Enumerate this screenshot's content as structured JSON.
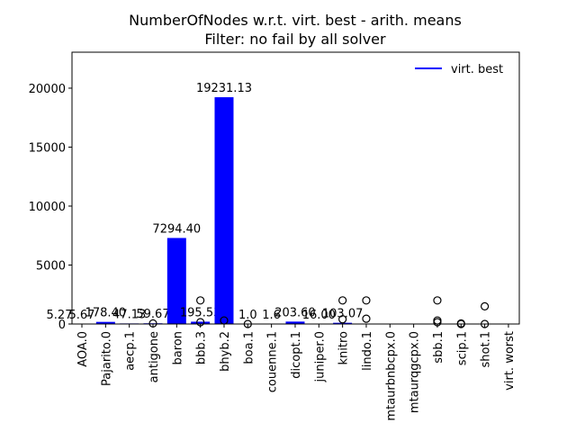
{
  "chart_data": {
    "type": "bar",
    "title": "NumberOfNodes w.r.t. virt. best - arith. means",
    "subtitle": "Filter: no fail by all solver",
    "categories": [
      "AOA.0",
      "Pajarito.0",
      "aecp.1",
      "antigone",
      "baron",
      "bbb.3",
      "bhyb.2",
      "boa.1",
      "couenne.1",
      "dicopt.1",
      "juniper.0",
      "knitro",
      "lindo.1",
      "mtaurbnbcpx.0",
      "mtaurqgcpx.0",
      "sbb.1",
      "scip.1",
      "shot.1",
      "virt. worst"
    ],
    "series": [
      {
        "name": "virt. best",
        "color": "#0000ff",
        "values": [
          5.67,
          178.4,
          47.13,
          59.67,
          7294.4,
          195.53,
          19231.13,
          1.0,
          1.6,
          203.6,
          16.0,
          103.07,
          20,
          5,
          5,
          30,
          10,
          10,
          5
        ],
        "value_labels": [
          "5.67",
          "178.40",
          "47.13",
          "59.67",
          "7294.40",
          "195.53",
          "19231.13",
          "1.0",
          "1.6",
          "203.60",
          "16.00",
          "103.07",
          null,
          null,
          null,
          null,
          null,
          null,
          null
        ]
      }
    ],
    "extra_labels": [
      "5.27"
    ],
    "outliers": [
      {
        "category": 3,
        "value": 50
      },
      {
        "category": 5,
        "value": 2000
      },
      {
        "category": 5,
        "value": 150
      },
      {
        "category": 6,
        "value": 300
      },
      {
        "category": 7,
        "value": 0
      },
      {
        "category": 11,
        "value": 2000
      },
      {
        "category": 11,
        "value": 400
      },
      {
        "category": 12,
        "value": 2000
      },
      {
        "category": 12,
        "value": 450
      },
      {
        "category": 15,
        "value": 2000
      },
      {
        "category": 15,
        "value": 300
      },
      {
        "category": 15,
        "value": 150
      },
      {
        "category": 16,
        "value": 50
      },
      {
        "category": 16,
        "value": 0
      },
      {
        "category": 17,
        "value": 1500
      },
      {
        "category": 17,
        "value": 0
      }
    ],
    "ylim": [
      0,
      23050
    ],
    "yticks": [
      0,
      5000,
      10000,
      15000,
      20000
    ],
    "legend": "upper right"
  }
}
